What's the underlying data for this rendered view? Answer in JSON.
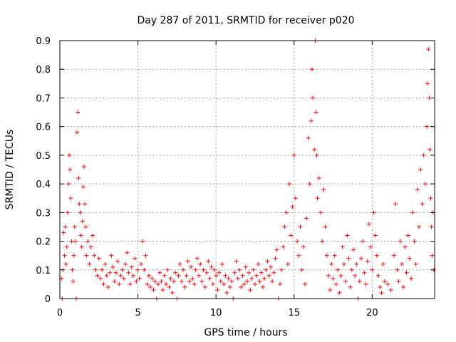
{
  "chart_data": {
    "type": "scatter",
    "title": "Day 287 of 2011, SRMTID for receiver p020",
    "xlabel": "GPS time / hours",
    "ylabel": "SRMTID / TECUs",
    "xlim": [
      0,
      24
    ],
    "ylim": [
      0,
      0.9
    ],
    "x_ticks": [
      0,
      5,
      10,
      15,
      20
    ],
    "y_ticks": [
      0,
      0.1,
      0.2,
      0.3,
      0.4,
      0.5,
      0.6,
      0.7,
      0.8,
      0.9
    ],
    "x_tick_labels": [
      "0",
      "5",
      "10",
      "15",
      "20"
    ],
    "y_tick_labels": [
      "0",
      "0.1",
      "0.2",
      "0.3",
      "0.4",
      "0.5",
      "0.6",
      "0.7",
      "0.8",
      "0.9"
    ],
    "grid": true,
    "marker": "+",
    "series_color": "#ff0000",
    "series": [
      {
        "name": "SRMTID",
        "points": [
          [
            0.1,
            0.07
          ],
          [
            0.15,
            0.0
          ],
          [
            0.2,
            0.1
          ],
          [
            0.25,
            0.23
          ],
          [
            0.3,
            0.15
          ],
          [
            0.35,
            0.25
          ],
          [
            0.4,
            0.12
          ],
          [
            0.45,
            0.18
          ],
          [
            0.5,
            0.3
          ],
          [
            0.55,
            0.4
          ],
          [
            0.6,
            0.5
          ],
          [
            0.65,
            0.45
          ],
          [
            0.7,
            0.35
          ],
          [
            0.75,
            0.2
          ],
          [
            0.8,
            0.1
          ],
          [
            0.85,
            0.06
          ],
          [
            0.9,
            0.15
          ],
          [
            0.95,
            0.25
          ],
          [
            1.0,
            0.2
          ],
          [
            1.05,
            0.0
          ],
          [
            1.1,
            0.58
          ],
          [
            1.15,
            0.65
          ],
          [
            1.2,
            0.42
          ],
          [
            1.25,
            0.33
          ],
          [
            1.3,
            0.3
          ],
          [
            1.35,
            0.22
          ],
          [
            1.4,
            0.18
          ],
          [
            1.45,
            0.27
          ],
          [
            1.5,
            0.39
          ],
          [
            1.55,
            0.46
          ],
          [
            1.6,
            0.33
          ],
          [
            1.65,
            0.25
          ],
          [
            1.7,
            0.15
          ],
          [
            1.8,
            0.2
          ],
          [
            1.9,
            0.12
          ],
          [
            2.0,
            0.18
          ],
          [
            2.1,
            0.22
          ],
          [
            2.2,
            0.15
          ],
          [
            2.3,
            0.1
          ],
          [
            2.4,
            0.08
          ],
          [
            2.5,
            0.14
          ],
          [
            2.6,
            0.07
          ],
          [
            2.7,
            0.1
          ],
          [
            2.8,
            0.05
          ],
          [
            2.9,
            0.12
          ],
          [
            3.0,
            0.08
          ],
          [
            3.1,
            0.04
          ],
          [
            3.2,
            0.09
          ],
          [
            3.3,
            0.15
          ],
          [
            3.4,
            0.11
          ],
          [
            3.5,
            0.06
          ],
          [
            3.6,
            0.09
          ],
          [
            3.7,
            0.13
          ],
          [
            3.8,
            0.05
          ],
          [
            3.9,
            0.08
          ],
          [
            4.0,
            0.1
          ],
          [
            4.1,
            0.07
          ],
          [
            4.2,
            0.12
          ],
          [
            4.3,
            0.16
          ],
          [
            4.4,
            0.09
          ],
          [
            4.5,
            0.05
          ],
          [
            4.6,
            0.11
          ],
          [
            4.7,
            0.08
          ],
          [
            4.8,
            0.14
          ],
          [
            4.9,
            0.06
          ],
          [
            5.0,
            0.1
          ],
          [
            5.1,
            0.07
          ],
          [
            5.2,
            0.12
          ],
          [
            5.3,
            0.2
          ],
          [
            5.4,
            0.1
          ],
          [
            5.5,
            0.15
          ],
          [
            5.6,
            0.05
          ],
          [
            5.7,
            0.08
          ],
          [
            5.8,
            0.04
          ],
          [
            5.9,
            0.07
          ],
          [
            6.0,
            0.03
          ],
          [
            6.1,
            0.06
          ],
          [
            6.2,
            0.0
          ],
          [
            6.3,
            0.05
          ],
          [
            6.4,
            0.09
          ],
          [
            6.5,
            0.06
          ],
          [
            6.6,
            0.03
          ],
          [
            6.7,
            0.08
          ],
          [
            6.8,
            0.05
          ],
          [
            6.9,
            0.1
          ],
          [
            7.0,
            0.04
          ],
          [
            7.1,
            0.07
          ],
          [
            7.2,
            0.02
          ],
          [
            7.3,
            0.06
          ],
          [
            7.4,
            0.09
          ],
          [
            7.5,
            0.0
          ],
          [
            7.6,
            0.08
          ],
          [
            7.7,
            0.12
          ],
          [
            7.8,
            0.06
          ],
          [
            7.9,
            0.1
          ],
          [
            8.0,
            0.04
          ],
          [
            8.1,
            0.08
          ],
          [
            8.2,
            0.13
          ],
          [
            8.3,
            0.06
          ],
          [
            8.4,
            0.11
          ],
          [
            8.5,
            0.07
          ],
          [
            8.6,
            0.05
          ],
          [
            8.7,
            0.1
          ],
          [
            8.8,
            0.14
          ],
          [
            8.9,
            0.08
          ],
          [
            9.0,
            0.12
          ],
          [
            9.1,
            0.06
          ],
          [
            9.2,
            0.1
          ],
          [
            9.3,
            0.04
          ],
          [
            9.4,
            0.09
          ],
          [
            9.5,
            0.13
          ],
          [
            9.6,
            0.07
          ],
          [
            9.7,
            0.11
          ],
          [
            9.8,
            0.05
          ],
          [
            9.9,
            0.1
          ],
          [
            10.0,
            0.08
          ],
          [
            10.1,
            0.03
          ],
          [
            10.2,
            0.09
          ],
          [
            10.3,
            0.06
          ],
          [
            10.4,
            0.12
          ],
          [
            10.5,
            0.05
          ],
          [
            10.6,
            0.08
          ],
          [
            10.7,
            0.02
          ],
          [
            10.8,
            0.07
          ],
          [
            10.9,
            0.04
          ],
          [
            11.0,
            0.06
          ],
          [
            11.1,
            0.0
          ],
          [
            11.2,
            0.09
          ],
          [
            11.3,
            0.13
          ],
          [
            11.4,
            0.07
          ],
          [
            11.5,
            0.1
          ],
          [
            11.6,
            0.04
          ],
          [
            11.7,
            0.08
          ],
          [
            11.8,
            0.05
          ],
          [
            11.9,
            0.11
          ],
          [
            12.0,
            0.06
          ],
          [
            12.1,
            0.09
          ],
          [
            12.2,
            0.03
          ],
          [
            12.3,
            0.07
          ],
          [
            12.4,
            0.1
          ],
          [
            12.5,
            0.05
          ],
          [
            12.6,
            0.08
          ],
          [
            12.7,
            0.12
          ],
          [
            12.8,
            0.06
          ],
          [
            12.9,
            0.09
          ],
          [
            13.0,
            0.04
          ],
          [
            13.1,
            0.07
          ],
          [
            13.2,
            0.1
          ],
          [
            13.3,
            0.13
          ],
          [
            13.4,
            0.08
          ],
          [
            13.5,
            0.11
          ],
          [
            13.6,
            0.06
          ],
          [
            13.7,
            0.09
          ],
          [
            13.8,
            0.14
          ],
          [
            13.9,
            0.17
          ],
          [
            14.0,
            0.0
          ],
          [
            14.1,
            0.05
          ],
          [
            14.2,
            0.1
          ],
          [
            14.3,
            0.18
          ],
          [
            14.4,
            0.25
          ],
          [
            14.5,
            0.3
          ],
          [
            14.6,
            0.12
          ],
          [
            14.7,
            0.4
          ],
          [
            14.8,
            0.22
          ],
          [
            14.9,
            0.32
          ],
          [
            15.0,
            0.5
          ],
          [
            15.1,
            0.35
          ],
          [
            15.2,
            0.2
          ],
          [
            15.3,
            0.15
          ],
          [
            15.4,
            0.25
          ],
          [
            15.5,
            0.1
          ],
          [
            15.6,
            0.18
          ],
          [
            15.7,
            0.05
          ],
          [
            15.8,
            0.28
          ],
          [
            15.9,
            0.56
          ],
          [
            16.0,
            0.4
          ],
          [
            16.1,
            0.62
          ],
          [
            16.15,
            0.8
          ],
          [
            16.2,
            0.7
          ],
          [
            16.3,
            0.52
          ],
          [
            16.35,
            0.9
          ],
          [
            16.4,
            0.65
          ],
          [
            16.45,
            0.5
          ],
          [
            16.5,
            0.35
          ],
          [
            16.6,
            0.42
          ],
          [
            16.7,
            0.3
          ],
          [
            16.8,
            0.2
          ],
          [
            16.9,
            0.38
          ],
          [
            17.0,
            0.25
          ],
          [
            17.1,
            0.15
          ],
          [
            17.2,
            0.08
          ],
          [
            17.3,
            0.03
          ],
          [
            17.4,
            0.12
          ],
          [
            17.5,
            0.07
          ],
          [
            17.6,
            0.15
          ],
          [
            17.7,
            0.05
          ],
          [
            17.8,
            0.1
          ],
          [
            17.9,
            0.02
          ],
          [
            18.0,
            0.08
          ],
          [
            18.1,
            0.18
          ],
          [
            18.2,
            0.12
          ],
          [
            18.3,
            0.06
          ],
          [
            18.4,
            0.22
          ],
          [
            18.5,
            0.14
          ],
          [
            18.6,
            0.04
          ],
          [
            18.7,
            0.1
          ],
          [
            18.8,
            0.17
          ],
          [
            18.9,
            0.08
          ],
          [
            19.0,
            0.12
          ],
          [
            19.1,
            0.0
          ],
          [
            19.2,
            0.06
          ],
          [
            19.3,
            0.14
          ],
          [
            19.4,
            0.2
          ],
          [
            19.5,
            0.09
          ],
          [
            19.6,
            0.05
          ],
          [
            19.7,
            0.13
          ],
          [
            19.8,
            0.26
          ],
          [
            19.9,
            0.18
          ],
          [
            20.0,
            0.1
          ],
          [
            20.1,
            0.3
          ],
          [
            20.2,
            0.22
          ],
          [
            20.3,
            0.15
          ],
          [
            20.4,
            0.08
          ],
          [
            20.5,
            0.04
          ],
          [
            20.6,
            0.02
          ],
          [
            20.7,
            0.12
          ],
          [
            20.8,
            0.06
          ],
          [
            21.0,
            0.05
          ],
          [
            21.2,
            0.03
          ],
          [
            21.4,
            0.15
          ],
          [
            21.5,
            0.33
          ],
          [
            21.6,
            0.1
          ],
          [
            21.7,
            0.06
          ],
          [
            21.8,
            0.2
          ],
          [
            21.9,
            0.12
          ],
          [
            22.0,
            0.04
          ],
          [
            22.1,
            0.18
          ],
          [
            22.2,
            0.09
          ],
          [
            22.3,
            0.22
          ],
          [
            22.4,
            0.14
          ],
          [
            22.5,
            0.07
          ],
          [
            22.6,
            0.3
          ],
          [
            22.7,
            0.2
          ],
          [
            22.8,
            0.12
          ],
          [
            22.9,
            0.38
          ],
          [
            23.0,
            0.25
          ],
          [
            23.1,
            0.45
          ],
          [
            23.2,
            0.33
          ],
          [
            23.3,
            0.5
          ],
          [
            23.4,
            0.4
          ],
          [
            23.5,
            0.6
          ],
          [
            23.55,
            0.75
          ],
          [
            23.6,
            0.87
          ],
          [
            23.65,
            0.7
          ],
          [
            23.7,
            0.52
          ],
          [
            23.75,
            0.35
          ],
          [
            23.8,
            0.25
          ],
          [
            23.85,
            0.15
          ],
          [
            23.9,
            0.3
          ],
          [
            23.95,
            0.1
          ]
        ]
      }
    ]
  }
}
